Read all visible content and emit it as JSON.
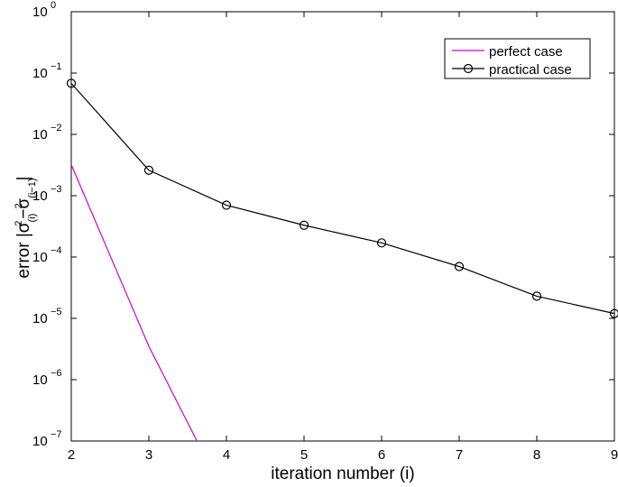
{
  "chart_data": {
    "type": "line",
    "title": "",
    "xlabel": "iteration number (i)",
    "ylabel": {
      "prefix": "error |σ",
      "sub1": "(i)",
      "sup1": "2",
      "mid": "−σ",
      "sub2": "(i−1)",
      "sup2": "2",
      "suffix": "|"
    },
    "xlim": [
      2,
      9
    ],
    "ylim": [
      1e-07,
      1
    ],
    "yscale": "log",
    "xticks": [
      2,
      3,
      4,
      5,
      6,
      7,
      8,
      9
    ],
    "yticks": [
      {
        "value": 1,
        "base": "10",
        "exp": "0"
      },
      {
        "value": 0.1,
        "base": "10",
        "exp": "−1"
      },
      {
        "value": 0.01,
        "base": "10",
        "exp": "−2"
      },
      {
        "value": 0.001,
        "base": "10",
        "exp": "−3"
      },
      {
        "value": 0.0001,
        "base": "10",
        "exp": "−4"
      },
      {
        "value": 1e-05,
        "base": "10",
        "exp": "−5"
      },
      {
        "value": 1e-06,
        "base": "10",
        "exp": "−6"
      },
      {
        "value": 1e-07,
        "base": "10",
        "exp": "−7"
      }
    ],
    "grid": false,
    "legend_position": "top-right",
    "series": [
      {
        "name": "perfect case",
        "color": "#cc00cc",
        "marker": "none",
        "points": [
          [
            2,
            0.0032
          ],
          [
            3,
            3.5e-06
          ],
          [
            3.62,
            1e-07
          ]
        ]
      },
      {
        "name": "practical case",
        "color": "#000000",
        "marker": "circle",
        "points": [
          [
            2,
            0.068
          ],
          [
            3,
            0.0026
          ],
          [
            4,
            0.0007
          ],
          [
            5,
            0.00033
          ],
          [
            6,
            0.00017
          ],
          [
            7,
            7e-05
          ],
          [
            8,
            2.3e-05
          ],
          [
            9,
            1.2e-05
          ]
        ]
      }
    ]
  }
}
